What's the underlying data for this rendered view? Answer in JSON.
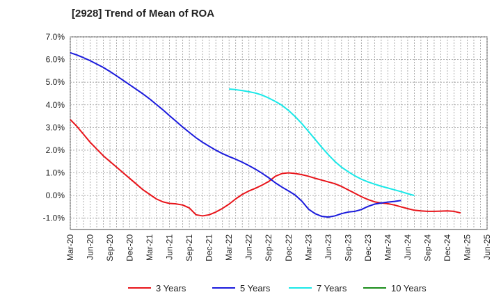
{
  "chart_data": {
    "type": "line",
    "title": "[2928]  Trend of Mean of ROA",
    "xlabel": "",
    "ylabel": "",
    "ylim": [
      -1.5,
      7.0
    ],
    "yticks": [
      -1.0,
      0.0,
      1.0,
      2.0,
      3.0,
      4.0,
      5.0,
      6.0,
      7.0
    ],
    "ytick_labels": [
      "-1.0%",
      "0.0%",
      "1.0%",
      "2.0%",
      "3.0%",
      "4.0%",
      "5.0%",
      "6.0%",
      "7.0%"
    ],
    "grid": true,
    "legend_position": "bottom",
    "x_labels": [
      "Mar-20",
      "Jun-20",
      "Sep-20",
      "Dec-20",
      "Mar-21",
      "Jun-21",
      "Sep-21",
      "Dec-21",
      "Mar-22",
      "Jun-22",
      "Sep-22",
      "Dec-22",
      "Mar-23",
      "Jun-23",
      "Sep-23",
      "Dec-23",
      "Mar-24",
      "Jun-24",
      "Sep-24",
      "Dec-24",
      "Mar-25",
      "Jun-25"
    ],
    "series": [
      {
        "name": "3 Years",
        "color": "#e8141a",
        "start_index": 0,
        "values": [
          3.35,
          3.05,
          2.7,
          2.35,
          2.05,
          1.75,
          1.5,
          1.25,
          1.0,
          0.75,
          0.5,
          0.25,
          0.05,
          -0.15,
          -0.28,
          -0.35,
          -0.37,
          -0.42,
          -0.55,
          -0.85,
          -0.9,
          -0.85,
          -0.73,
          -0.57,
          -0.38,
          -0.15,
          0.05,
          0.2,
          0.32,
          0.46,
          0.62,
          0.85,
          0.97,
          1.0,
          0.97,
          0.92,
          0.85,
          0.76,
          0.68,
          0.6,
          0.52,
          0.4,
          0.25,
          0.1,
          -0.05,
          -0.18,
          -0.28,
          -0.33,
          -0.36,
          -0.42,
          -0.5,
          -0.58,
          -0.65,
          -0.68,
          -0.7,
          -0.7,
          -0.69,
          -0.68,
          -0.7,
          -0.77
        ]
      },
      {
        "name": "5 Years",
        "color": "#1a1adc",
        "start_index": 0,
        "values": [
          6.3,
          6.2,
          6.08,
          5.95,
          5.8,
          5.65,
          5.47,
          5.28,
          5.08,
          4.88,
          4.68,
          4.48,
          4.26,
          4.02,
          3.78,
          3.52,
          3.27,
          3.02,
          2.78,
          2.55,
          2.35,
          2.17,
          2.0,
          1.85,
          1.72,
          1.6,
          1.47,
          1.32,
          1.16,
          0.98,
          0.78,
          0.56,
          0.37,
          0.2,
          0.02,
          -0.25,
          -0.6,
          -0.8,
          -0.92,
          -0.95,
          -0.9,
          -0.8,
          -0.73,
          -0.7,
          -0.62,
          -0.48,
          -0.38,
          -0.33,
          -0.29,
          -0.26,
          -0.22
        ]
      },
      {
        "name": "7 Years",
        "color": "#1ae8e8",
        "start_index": 24,
        "values": [
          4.7,
          4.67,
          4.63,
          4.58,
          4.52,
          4.43,
          4.3,
          4.15,
          3.98,
          3.75,
          3.48,
          3.17,
          2.83,
          2.48,
          2.13,
          1.8,
          1.5,
          1.25,
          1.05,
          0.87,
          0.72,
          0.6,
          0.5,
          0.41,
          0.33,
          0.25,
          0.17,
          0.08,
          0.0
        ]
      },
      {
        "name": "10 Years",
        "color": "#1a8c1a",
        "start_index": 0,
        "values": []
      }
    ]
  }
}
